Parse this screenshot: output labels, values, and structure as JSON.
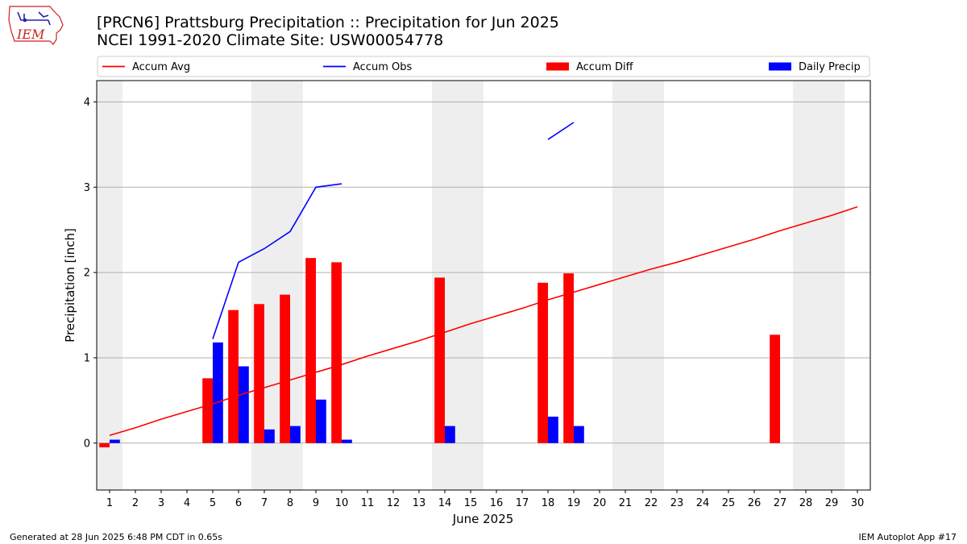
{
  "title_line1": "[PRCN6] Prattsburg Precipitation :: Precipitation for Jun 2025",
  "title_line2": "NCEI 1991-2020 Climate Site: USW00054778",
  "footer_left": "Generated at 28 Jun 2025 6:48 PM CDT in 0.65s",
  "footer_right": "IEM Autoplot App #17",
  "logo_text": "IEM",
  "colors": {
    "accum_avg": "#ff0000",
    "accum_obs": "#0000ff",
    "accum_diff": "#ff0000",
    "daily_precip": "#0000ff",
    "weekend_shade": "#eeeeee",
    "grid": "#b0b0b0"
  },
  "chart_data": {
    "type": "bar",
    "xlabel": "June 2025",
    "ylabel": "Precipitation [inch]",
    "xlim": [
      0.5,
      30.5
    ],
    "ylim": [
      -0.55,
      4.25
    ],
    "yticks": [
      0,
      1,
      2,
      3,
      4
    ],
    "x": [
      1,
      2,
      3,
      4,
      5,
      6,
      7,
      8,
      9,
      10,
      11,
      12,
      13,
      14,
      15,
      16,
      17,
      18,
      19,
      20,
      21,
      22,
      23,
      24,
      25,
      26,
      27,
      28,
      29,
      30
    ],
    "legend": [
      "Accum Avg",
      "Accum Obs",
      "Accum Diff",
      "Daily Precip"
    ],
    "legend_position": "top",
    "grid": "horizontal",
    "weekend_days": [
      1,
      7,
      8,
      14,
      15,
      21,
      22,
      28,
      29
    ],
    "series": [
      {
        "name": "Accum Avg",
        "type": "line",
        "values": [
          0.09,
          0.18,
          0.28,
          0.37,
          0.46,
          0.56,
          0.65,
          0.74,
          0.83,
          0.92,
          1.02,
          1.11,
          1.2,
          1.3,
          1.4,
          1.49,
          1.58,
          1.68,
          1.77,
          1.86,
          1.95,
          2.04,
          2.12,
          2.21,
          2.3,
          2.39,
          2.49,
          2.58,
          2.67,
          2.77
        ]
      },
      {
        "name": "Accum Obs",
        "type": "line",
        "values": [
          null,
          null,
          null,
          null,
          1.22,
          2.12,
          2.28,
          2.48,
          3.0,
          3.04,
          null,
          null,
          null,
          null,
          null,
          null,
          null,
          3.56,
          3.76,
          null,
          null,
          null,
          null,
          null,
          null,
          null,
          null,
          null,
          null,
          null
        ]
      },
      {
        "name": "Accum Diff",
        "type": "bar",
        "values": [
          -0.05,
          null,
          null,
          null,
          0.76,
          1.56,
          1.63,
          1.74,
          2.17,
          2.12,
          null,
          null,
          null,
          1.94,
          null,
          null,
          null,
          1.88,
          1.99,
          null,
          null,
          null,
          null,
          null,
          null,
          null,
          1.27,
          null,
          null,
          null
        ]
      },
      {
        "name": "Daily Precip",
        "type": "bar",
        "values": [
          0.04,
          null,
          null,
          null,
          1.18,
          0.9,
          0.16,
          0.2,
          0.51,
          0.04,
          null,
          null,
          null,
          0.2,
          null,
          null,
          null,
          0.31,
          0.2,
          null,
          null,
          null,
          null,
          null,
          null,
          null,
          null,
          null,
          null,
          null
        ]
      }
    ]
  }
}
